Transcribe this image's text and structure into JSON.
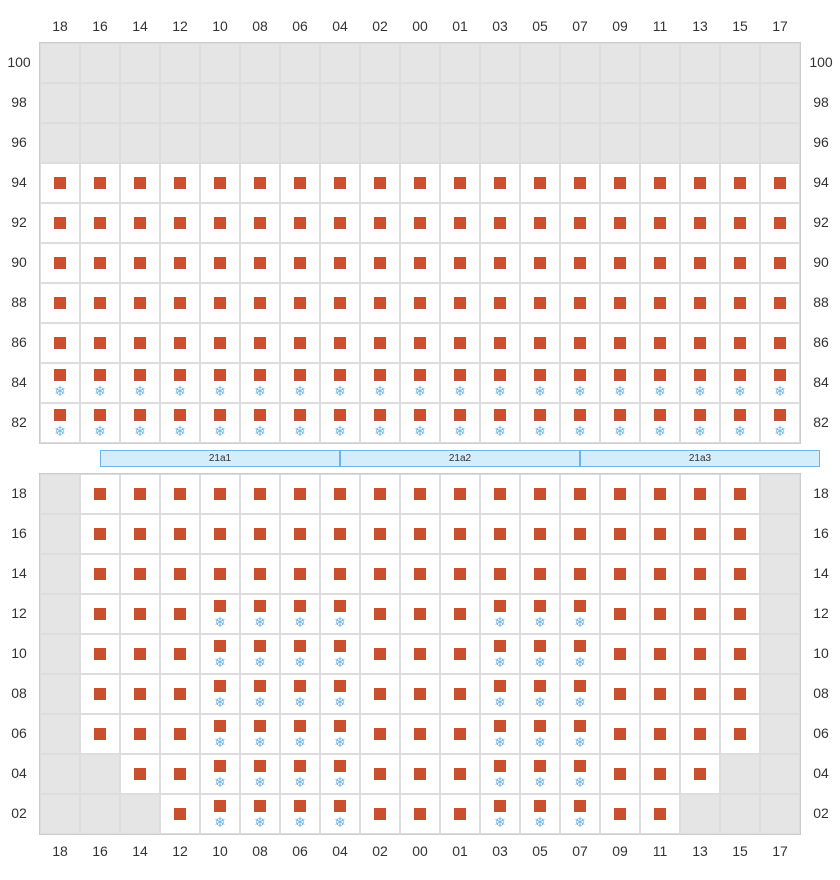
{
  "columns": [
    "18",
    "16",
    "14",
    "12",
    "10",
    "08",
    "06",
    "04",
    "02",
    "00",
    "01",
    "03",
    "05",
    "07",
    "09",
    "11",
    "13",
    "15",
    "17"
  ],
  "upper": {
    "row_labels": [
      "100",
      "98",
      "96",
      "94",
      "92",
      "90",
      "88",
      "86",
      "84",
      "82"
    ],
    "rows": [
      [
        {
          "t": "g"
        },
        {
          "t": "g"
        },
        {
          "t": "g"
        },
        {
          "t": "g"
        },
        {
          "t": "g"
        },
        {
          "t": "g"
        },
        {
          "t": "g"
        },
        {
          "t": "g"
        },
        {
          "t": "g"
        },
        {
          "t": "g"
        },
        {
          "t": "g"
        },
        {
          "t": "g"
        },
        {
          "t": "g"
        },
        {
          "t": "g"
        },
        {
          "t": "g"
        },
        {
          "t": "g"
        },
        {
          "t": "g"
        },
        {
          "t": "g"
        },
        {
          "t": "g"
        }
      ],
      [
        {
          "t": "g"
        },
        {
          "t": "g"
        },
        {
          "t": "g"
        },
        {
          "t": "g"
        },
        {
          "t": "g"
        },
        {
          "t": "g"
        },
        {
          "t": "g"
        },
        {
          "t": "g"
        },
        {
          "t": "g"
        },
        {
          "t": "g"
        },
        {
          "t": "g"
        },
        {
          "t": "g"
        },
        {
          "t": "g"
        },
        {
          "t": "g"
        },
        {
          "t": "g"
        },
        {
          "t": "g"
        },
        {
          "t": "g"
        },
        {
          "t": "g"
        },
        {
          "t": "g"
        }
      ],
      [
        {
          "t": "g"
        },
        {
          "t": "g"
        },
        {
          "t": "g"
        },
        {
          "t": "g"
        },
        {
          "t": "g"
        },
        {
          "t": "g"
        },
        {
          "t": "g"
        },
        {
          "t": "g"
        },
        {
          "t": "g"
        },
        {
          "t": "g"
        },
        {
          "t": "g"
        },
        {
          "t": "g"
        },
        {
          "t": "g"
        },
        {
          "t": "g"
        },
        {
          "t": "g"
        },
        {
          "t": "g"
        },
        {
          "t": "g"
        },
        {
          "t": "g"
        },
        {
          "t": "g"
        }
      ],
      [
        {
          "t": "m"
        },
        {
          "t": "m"
        },
        {
          "t": "m"
        },
        {
          "t": "m"
        },
        {
          "t": "m"
        },
        {
          "t": "m"
        },
        {
          "t": "m"
        },
        {
          "t": "m"
        },
        {
          "t": "m"
        },
        {
          "t": "m"
        },
        {
          "t": "m"
        },
        {
          "t": "m"
        },
        {
          "t": "m"
        },
        {
          "t": "m"
        },
        {
          "t": "m"
        },
        {
          "t": "m"
        },
        {
          "t": "m"
        },
        {
          "t": "m"
        },
        {
          "t": "m"
        }
      ],
      [
        {
          "t": "m"
        },
        {
          "t": "m"
        },
        {
          "t": "m"
        },
        {
          "t": "m"
        },
        {
          "t": "m"
        },
        {
          "t": "m"
        },
        {
          "t": "m"
        },
        {
          "t": "m"
        },
        {
          "t": "m"
        },
        {
          "t": "m"
        },
        {
          "t": "m"
        },
        {
          "t": "m"
        },
        {
          "t": "m"
        },
        {
          "t": "m"
        },
        {
          "t": "m"
        },
        {
          "t": "m"
        },
        {
          "t": "m"
        },
        {
          "t": "m"
        },
        {
          "t": "m"
        }
      ],
      [
        {
          "t": "m"
        },
        {
          "t": "m"
        },
        {
          "t": "m"
        },
        {
          "t": "m"
        },
        {
          "t": "m"
        },
        {
          "t": "m"
        },
        {
          "t": "m"
        },
        {
          "t": "m"
        },
        {
          "t": "m"
        },
        {
          "t": "m"
        },
        {
          "t": "m"
        },
        {
          "t": "m"
        },
        {
          "t": "m"
        },
        {
          "t": "m"
        },
        {
          "t": "m"
        },
        {
          "t": "m"
        },
        {
          "t": "m"
        },
        {
          "t": "m"
        },
        {
          "t": "m"
        }
      ],
      [
        {
          "t": "m"
        },
        {
          "t": "m"
        },
        {
          "t": "m"
        },
        {
          "t": "m"
        },
        {
          "t": "m"
        },
        {
          "t": "m"
        },
        {
          "t": "m"
        },
        {
          "t": "m"
        },
        {
          "t": "m"
        },
        {
          "t": "m"
        },
        {
          "t": "m"
        },
        {
          "t": "m"
        },
        {
          "t": "m"
        },
        {
          "t": "m"
        },
        {
          "t": "m"
        },
        {
          "t": "m"
        },
        {
          "t": "m"
        },
        {
          "t": "m"
        },
        {
          "t": "m"
        }
      ],
      [
        {
          "t": "m"
        },
        {
          "t": "m"
        },
        {
          "t": "m"
        },
        {
          "t": "m"
        },
        {
          "t": "m"
        },
        {
          "t": "m"
        },
        {
          "t": "m"
        },
        {
          "t": "m"
        },
        {
          "t": "m"
        },
        {
          "t": "m"
        },
        {
          "t": "m"
        },
        {
          "t": "m"
        },
        {
          "t": "m"
        },
        {
          "t": "m"
        },
        {
          "t": "m"
        },
        {
          "t": "m"
        },
        {
          "t": "m"
        },
        {
          "t": "m"
        },
        {
          "t": "m"
        }
      ],
      [
        {
          "t": "ms"
        },
        {
          "t": "ms"
        },
        {
          "t": "ms"
        },
        {
          "t": "ms"
        },
        {
          "t": "ms"
        },
        {
          "t": "ms"
        },
        {
          "t": "ms"
        },
        {
          "t": "ms"
        },
        {
          "t": "ms"
        },
        {
          "t": "ms"
        },
        {
          "t": "ms"
        },
        {
          "t": "ms"
        },
        {
          "t": "ms"
        },
        {
          "t": "ms"
        },
        {
          "t": "ms"
        },
        {
          "t": "ms"
        },
        {
          "t": "ms"
        },
        {
          "t": "ms"
        },
        {
          "t": "ms"
        }
      ],
      [
        {
          "t": "ms"
        },
        {
          "t": "ms"
        },
        {
          "t": "ms"
        },
        {
          "t": "ms"
        },
        {
          "t": "ms"
        },
        {
          "t": "ms"
        },
        {
          "t": "ms"
        },
        {
          "t": "ms"
        },
        {
          "t": "ms"
        },
        {
          "t": "ms"
        },
        {
          "t": "ms"
        },
        {
          "t": "ms"
        },
        {
          "t": "ms"
        },
        {
          "t": "ms"
        },
        {
          "t": "ms"
        },
        {
          "t": "ms"
        },
        {
          "t": "ms"
        },
        {
          "t": "ms"
        },
        {
          "t": "ms"
        }
      ]
    ]
  },
  "zones": [
    "21a1",
    "21a2",
    "21a3"
  ],
  "lower": {
    "row_labels": [
      "18",
      "16",
      "14",
      "12",
      "10",
      "08",
      "06",
      "04",
      "02"
    ],
    "rows": [
      [
        {
          "t": "g"
        },
        {
          "t": "m"
        },
        {
          "t": "m"
        },
        {
          "t": "m"
        },
        {
          "t": "m"
        },
        {
          "t": "m"
        },
        {
          "t": "m"
        },
        {
          "t": "m"
        },
        {
          "t": "m"
        },
        {
          "t": "m"
        },
        {
          "t": "m"
        },
        {
          "t": "m"
        },
        {
          "t": "m"
        },
        {
          "t": "m"
        },
        {
          "t": "m"
        },
        {
          "t": "m"
        },
        {
          "t": "m"
        },
        {
          "t": "m"
        },
        {
          "t": "g"
        }
      ],
      [
        {
          "t": "g"
        },
        {
          "t": "m"
        },
        {
          "t": "m"
        },
        {
          "t": "m"
        },
        {
          "t": "m"
        },
        {
          "t": "m"
        },
        {
          "t": "m"
        },
        {
          "t": "m"
        },
        {
          "t": "m"
        },
        {
          "t": "m"
        },
        {
          "t": "m"
        },
        {
          "t": "m"
        },
        {
          "t": "m"
        },
        {
          "t": "m"
        },
        {
          "t": "m"
        },
        {
          "t": "m"
        },
        {
          "t": "m"
        },
        {
          "t": "m"
        },
        {
          "t": "g"
        }
      ],
      [
        {
          "t": "g"
        },
        {
          "t": "m"
        },
        {
          "t": "m"
        },
        {
          "t": "m"
        },
        {
          "t": "m"
        },
        {
          "t": "m"
        },
        {
          "t": "m"
        },
        {
          "t": "m"
        },
        {
          "t": "m"
        },
        {
          "t": "m"
        },
        {
          "t": "m"
        },
        {
          "t": "m"
        },
        {
          "t": "m"
        },
        {
          "t": "m"
        },
        {
          "t": "m"
        },
        {
          "t": "m"
        },
        {
          "t": "m"
        },
        {
          "t": "m"
        },
        {
          "t": "g"
        }
      ],
      [
        {
          "t": "g"
        },
        {
          "t": "m"
        },
        {
          "t": "m"
        },
        {
          "t": "m"
        },
        {
          "t": "ms"
        },
        {
          "t": "ms"
        },
        {
          "t": "ms"
        },
        {
          "t": "ms"
        },
        {
          "t": "m"
        },
        {
          "t": "m"
        },
        {
          "t": "m"
        },
        {
          "t": "ms"
        },
        {
          "t": "ms"
        },
        {
          "t": "ms"
        },
        {
          "t": "m"
        },
        {
          "t": "m"
        },
        {
          "t": "m"
        },
        {
          "t": "m"
        },
        {
          "t": "g"
        }
      ],
      [
        {
          "t": "g"
        },
        {
          "t": "m"
        },
        {
          "t": "m"
        },
        {
          "t": "m"
        },
        {
          "t": "ms"
        },
        {
          "t": "ms"
        },
        {
          "t": "ms"
        },
        {
          "t": "ms"
        },
        {
          "t": "m"
        },
        {
          "t": "m"
        },
        {
          "t": "m"
        },
        {
          "t": "ms"
        },
        {
          "t": "ms"
        },
        {
          "t": "ms"
        },
        {
          "t": "m"
        },
        {
          "t": "m"
        },
        {
          "t": "m"
        },
        {
          "t": "m"
        },
        {
          "t": "g"
        }
      ],
      [
        {
          "t": "g"
        },
        {
          "t": "m"
        },
        {
          "t": "m"
        },
        {
          "t": "m"
        },
        {
          "t": "ms"
        },
        {
          "t": "ms"
        },
        {
          "t": "ms"
        },
        {
          "t": "ms"
        },
        {
          "t": "m"
        },
        {
          "t": "m"
        },
        {
          "t": "m"
        },
        {
          "t": "ms"
        },
        {
          "t": "ms"
        },
        {
          "t": "ms"
        },
        {
          "t": "m"
        },
        {
          "t": "m"
        },
        {
          "t": "m"
        },
        {
          "t": "m"
        },
        {
          "t": "g"
        }
      ],
      [
        {
          "t": "g"
        },
        {
          "t": "m"
        },
        {
          "t": "m"
        },
        {
          "t": "m"
        },
        {
          "t": "ms"
        },
        {
          "t": "ms"
        },
        {
          "t": "ms"
        },
        {
          "t": "ms"
        },
        {
          "t": "m"
        },
        {
          "t": "m"
        },
        {
          "t": "m"
        },
        {
          "t": "ms"
        },
        {
          "t": "ms"
        },
        {
          "t": "ms"
        },
        {
          "t": "m"
        },
        {
          "t": "m"
        },
        {
          "t": "m"
        },
        {
          "t": "m"
        },
        {
          "t": "g"
        }
      ],
      [
        {
          "t": "g"
        },
        {
          "t": "g"
        },
        {
          "t": "m"
        },
        {
          "t": "m"
        },
        {
          "t": "ms"
        },
        {
          "t": "ms"
        },
        {
          "t": "ms"
        },
        {
          "t": "ms"
        },
        {
          "t": "m"
        },
        {
          "t": "m"
        },
        {
          "t": "m"
        },
        {
          "t": "ms"
        },
        {
          "t": "ms"
        },
        {
          "t": "ms"
        },
        {
          "t": "m"
        },
        {
          "t": "m"
        },
        {
          "t": "m"
        },
        {
          "t": "g"
        },
        {
          "t": "g"
        }
      ],
      [
        {
          "t": "g"
        },
        {
          "t": "g"
        },
        {
          "t": "g"
        },
        {
          "t": "m"
        },
        {
          "t": "ms"
        },
        {
          "t": "ms"
        },
        {
          "t": "ms"
        },
        {
          "t": "ms"
        },
        {
          "t": "m"
        },
        {
          "t": "m"
        },
        {
          "t": "m"
        },
        {
          "t": "ms"
        },
        {
          "t": "ms"
        },
        {
          "t": "ms"
        },
        {
          "t": "m"
        },
        {
          "t": "m"
        },
        {
          "t": "g"
        },
        {
          "t": "g"
        },
        {
          "t": "g"
        }
      ]
    ]
  },
  "colors": {
    "marker": "#c94f2f",
    "snow": "#6fb4e8",
    "grid_border": "#dddddd",
    "empty_gray": "#e5e5e5",
    "zone_bg": "#d4edfc",
    "zone_border": "#6fb4e8"
  },
  "cell_size": 40
}
